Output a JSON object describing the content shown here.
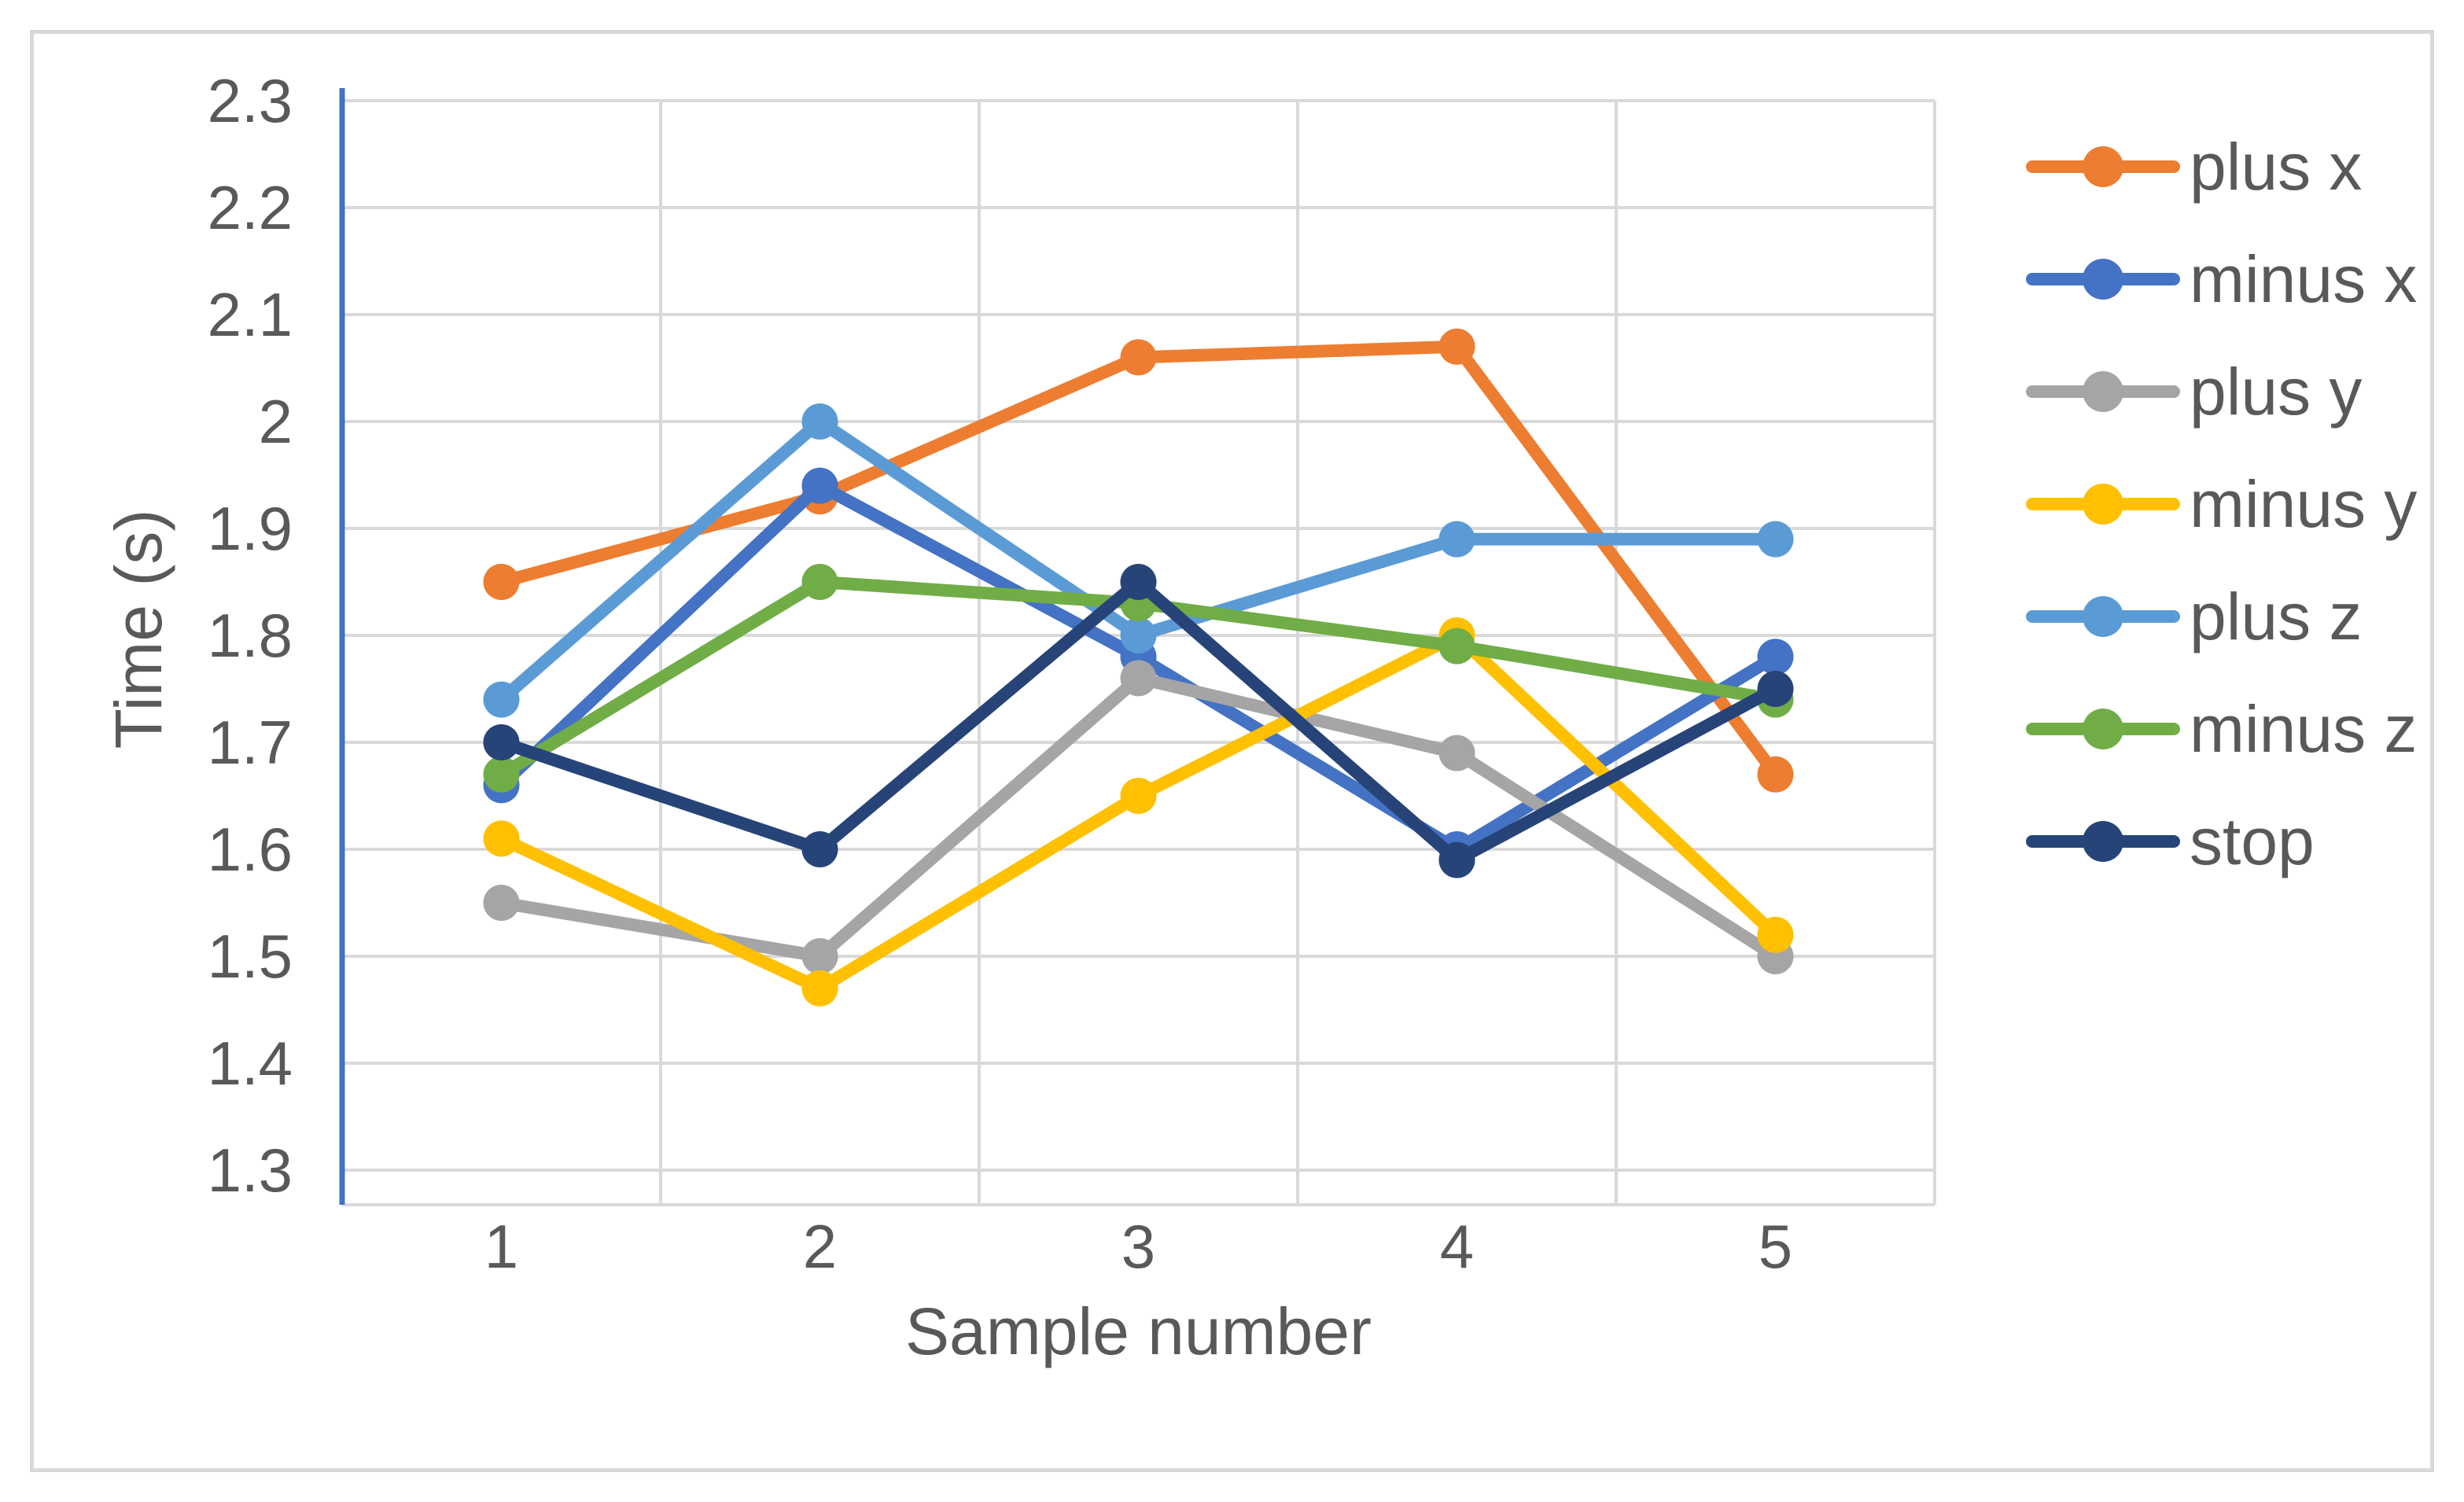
{
  "chart_data": {
    "type": "line",
    "title": "",
    "xlabel": "Sample number",
    "ylabel": "Time (s)",
    "categories": [
      "1",
      "2",
      "3",
      "4",
      "5"
    ],
    "ylim": [
      1.3,
      2.3
    ],
    "ytick_step": 0.1,
    "ytick_labels": [
      "2.3",
      "2.2",
      "2.1",
      "2",
      "1.9",
      "1.8",
      "1.7",
      "1.6",
      "1.5",
      "1.4",
      "1.3"
    ],
    "grid": true,
    "legend_position": "right",
    "marker": "circle",
    "series": [
      {
        "name": "plus x",
        "color": "#ED7D31",
        "values": [
          1.85,
          1.93,
          2.06,
          2.07,
          1.67
        ]
      },
      {
        "name": "minus x",
        "color": "#4472C4",
        "values": [
          1.66,
          1.94,
          1.78,
          1.6,
          1.78
        ]
      },
      {
        "name": "plus y",
        "color": "#A5A5A5",
        "values": [
          1.55,
          1.5,
          1.76,
          1.69,
          1.5
        ]
      },
      {
        "name": "minus y",
        "color": "#FFC000",
        "values": [
          1.61,
          1.47,
          1.65,
          1.8,
          1.52
        ]
      },
      {
        "name": "plus z",
        "color": "#5B9BD5",
        "values": [
          1.74,
          2.0,
          1.8,
          1.89,
          1.89
        ]
      },
      {
        "name": "minus z",
        "color": "#70AD47",
        "values": [
          1.67,
          1.85,
          1.83,
          1.79,
          1.74
        ]
      },
      {
        "name": "stop",
        "color": "#264478",
        "values": [
          1.7,
          1.6,
          1.85,
          1.59,
          1.75
        ]
      }
    ]
  },
  "style": {
    "grid_color": "#D9D9D9",
    "axis_line_color": "#4472C4",
    "text_color": "#595959",
    "border_color": "#D8D8D8",
    "background": "#FFFFFF"
  }
}
